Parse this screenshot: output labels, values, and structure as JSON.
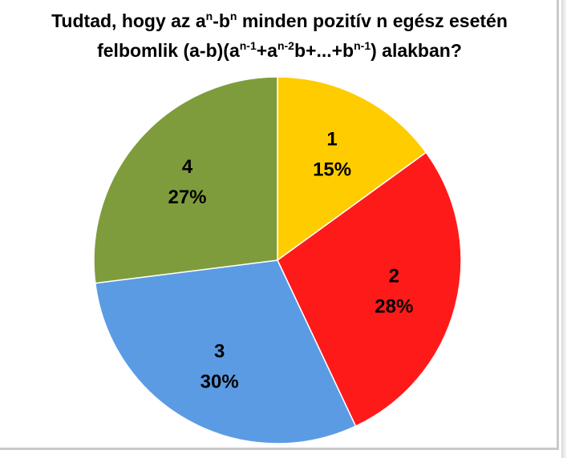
{
  "chart_data": {
    "type": "pie",
    "title_parts": [
      "Tudtad, hogy az a",
      "n",
      "-b",
      "n",
      " minden pozitív n egész esetén"
    ],
    "title_parts_line2": [
      "felbomlik (a-b)(a",
      "n-1",
      "+a",
      "n-2",
      "b+...+b",
      "n-1",
      ") alakban?"
    ],
    "slices": [
      {
        "label": "1",
        "value": 15,
        "value_label": "15%",
        "color": "#ffcc00"
      },
      {
        "label": "2",
        "value": 28,
        "value_label": "28%",
        "color": "#ff1a1a"
      },
      {
        "label": "3",
        "value": 30,
        "value_label": "30%",
        "color": "#5b9be3"
      },
      {
        "label": "4",
        "value": 27,
        "value_label": "27%",
        "color": "#7f9c3c"
      }
    ],
    "legend": "none"
  }
}
